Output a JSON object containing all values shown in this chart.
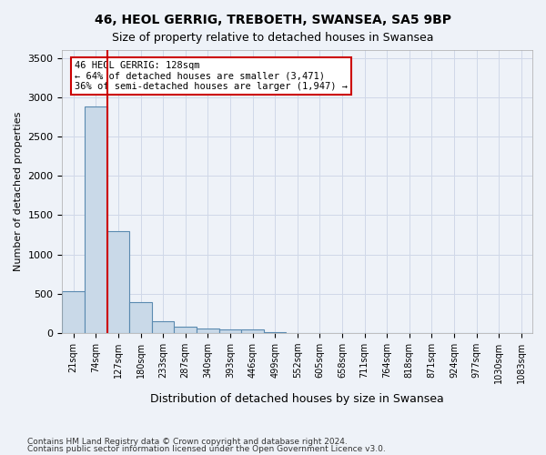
{
  "title1": "46, HEOL GERRIG, TREBOETH, SWANSEA, SA5 9BP",
  "title2": "Size of property relative to detached houses in Swansea",
  "xlabel": "Distribution of detached houses by size in Swansea",
  "ylabel": "Number of detached properties",
  "footnote1": "Contains HM Land Registry data © Crown copyright and database right 2024.",
  "footnote2": "Contains public sector information licensed under the Open Government Licence v3.0.",
  "bin_labels": [
    "21sqm",
    "74sqm",
    "127sqm",
    "180sqm",
    "233sqm",
    "287sqm",
    "340sqm",
    "393sqm",
    "446sqm",
    "499sqm",
    "552sqm",
    "605sqm",
    "658sqm",
    "711sqm",
    "764sqm",
    "818sqm",
    "871sqm",
    "924sqm",
    "977sqm",
    "1030sqm",
    "1083sqm"
  ],
  "bar_values": [
    530,
    2880,
    1300,
    390,
    155,
    80,
    55,
    50,
    45,
    5,
    0,
    0,
    0,
    0,
    0,
    0,
    0,
    0,
    0,
    0,
    0
  ],
  "bar_color": "#c9d9e8",
  "bar_edge_color": "#5a8ab0",
  "vline_color": "#cc0000",
  "annotation_text": "46 HEOL GERRIG: 128sqm\n← 64% of detached houses are smaller (3,471)\n36% of semi-detached houses are larger (1,947) →",
  "annotation_box_color": "#ffffff",
  "annotation_edge_color": "#cc0000",
  "ylim": [
    0,
    3600
  ],
  "yticks": [
    0,
    500,
    1000,
    1500,
    2000,
    2500,
    3000,
    3500
  ],
  "grid_color": "#d0d8e8",
  "bg_color": "#eef2f8",
  "plot_bg_color": "#eef2f8"
}
